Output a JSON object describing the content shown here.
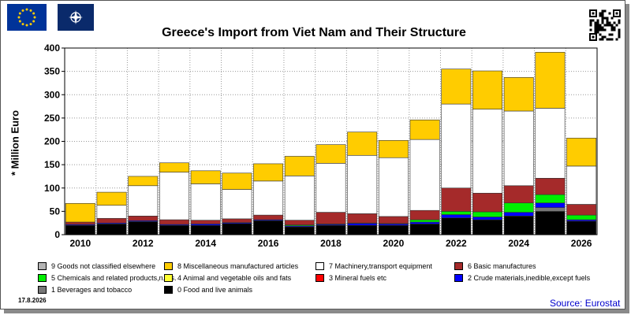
{
  "title": "Greece's Import from Viet Nam and Their Structure",
  "ylabel": "* Million Euro",
  "date": "17.8.2026",
  "source": "Source: Eurostat",
  "colors": {
    "9": "#b4b4b4",
    "8": "#ffcc00",
    "7": "#ffffff",
    "6": "#a52a2a",
    "5": "#00ee00",
    "4": "#ffff33",
    "3": "#ff0000",
    "2": "#0000ff",
    "1": "#777777",
    "0": "#000000"
  },
  "legend": [
    {
      "key": "9",
      "label": "9 Goods not classified elsewhere"
    },
    {
      "key": "8",
      "label": "8 Miscellaneous manufactured articles"
    },
    {
      "key": "7",
      "label": "7 Machinery,transport equipment"
    },
    {
      "key": "6",
      "label": "6 Basic manufactures"
    },
    {
      "key": "5",
      "label": "5 Chemicals and related products,n.e.s."
    },
    {
      "key": "4",
      "label": "4 Animal and vegetable oils and fats"
    },
    {
      "key": "3",
      "label": "3 Mineral fuels etc"
    },
    {
      "key": "2",
      "label": "2 Crude materials,inedible,except fuels"
    },
    {
      "key": "1",
      "label": "1 Beverages and tobacco"
    },
    {
      "key": "0",
      "label": "0 Food and live animals"
    }
  ],
  "chart_data": {
    "type": "bar",
    "stacked": true,
    "title": "Greece's Import from Viet Nam and Their Structure",
    "ylabel": "* Million Euro",
    "ylim": [
      0,
      400
    ],
    "yticks": [
      0,
      50,
      100,
      150,
      200,
      250,
      300,
      350,
      400
    ],
    "categories": [
      "2010",
      "2011",
      "2012",
      "2013",
      "2014",
      "2015",
      "2016",
      "2017",
      "2018",
      "2019",
      "2020",
      "2021",
      "2022",
      "2023",
      "2024",
      "2025",
      "2026"
    ],
    "x_tick_labels": [
      "2010",
      "2012",
      "2014",
      "2016",
      "2018",
      "2020",
      "2022",
      "2024",
      "2026"
    ],
    "grid": true,
    "series": [
      {
        "key": "0",
        "name": "0 Food and live animals",
        "values": [
          20,
          23,
          28,
          20,
          20,
          24,
          30,
          17,
          20,
          20,
          20,
          23,
          36,
          32,
          40,
          50,
          29
        ]
      },
      {
        "key": "1",
        "name": "1 Beverages and tobacco",
        "values": [
          0,
          0,
          0,
          0,
          0,
          0,
          0,
          0,
          0,
          0,
          0,
          0,
          0,
          0,
          0,
          8,
          0
        ]
      },
      {
        "key": "2",
        "name": "2 Crude materials,inedible,except fuels",
        "values": [
          2,
          2,
          2,
          2,
          3,
          2,
          2,
          2,
          2,
          4,
          3,
          4,
          7,
          6,
          8,
          10,
          3
        ]
      },
      {
        "key": "3",
        "name": "3 Mineral fuels etc",
        "values": [
          0,
          0,
          0,
          0,
          0,
          0,
          0,
          0,
          0,
          0,
          0,
          0,
          0,
          0,
          0,
          0,
          0
        ]
      },
      {
        "key": "4",
        "name": "4 Animal and vegetable oils and fats",
        "values": [
          0,
          0,
          0,
          0,
          0,
          0,
          0,
          0,
          0,
          0,
          0,
          0,
          0,
          0,
          0,
          0,
          0
        ]
      },
      {
        "key": "5",
        "name": "5 Chemicals and related products,n.e.s.",
        "values": [
          0,
          0,
          0,
          0,
          0,
          0,
          0,
          2,
          1,
          1,
          1,
          5,
          7,
          11,
          20,
          18,
          10
        ]
      },
      {
        "key": "6",
        "name": "6 Basic manufactures",
        "values": [
          5,
          10,
          10,
          10,
          8,
          8,
          10,
          10,
          25,
          20,
          15,
          20,
          50,
          40,
          37,
          35,
          23
        ]
      },
      {
        "key": "7",
        "name": "7 Machinery,transport equipment",
        "values": [
          0,
          28,
          65,
          102,
          78,
          63,
          73,
          95,
          105,
          125,
          126,
          152,
          180,
          180,
          160,
          150,
          82
        ]
      },
      {
        "key": "8",
        "name": "8 Miscellaneous manufactured articles",
        "values": [
          40,
          28,
          20,
          20,
          28,
          35,
          37,
          42,
          40,
          50,
          37,
          42,
          75,
          82,
          72,
          120,
          60
        ]
      },
      {
        "key": "9",
        "name": "9 Goods not classified elsewhere",
        "values": [
          0,
          0,
          0,
          0,
          0,
          0,
          0,
          0,
          0,
          0,
          0,
          0,
          0,
          0,
          0,
          0,
          0
        ]
      }
    ]
  }
}
